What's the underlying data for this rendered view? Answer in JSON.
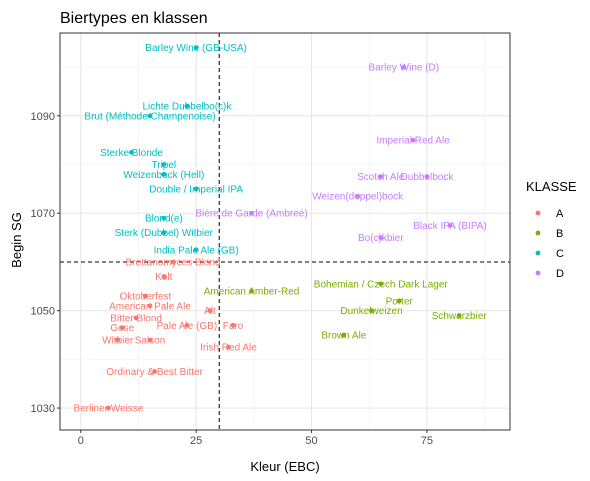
{
  "chart_data": {
    "type": "scatter",
    "title": "Biertypes en klassen",
    "xlabel": "Kleur (EBC)",
    "ylabel": "Begin SG",
    "xlim": [
      -4.5,
      93
    ],
    "ylim": [
      1025.5,
      1107
    ],
    "x_ticks": [
      0,
      25,
      50,
      75
    ],
    "y_ticks": [
      1030,
      1050,
      1070,
      1090
    ],
    "minor_x": [
      12.5,
      37.5,
      62.5,
      87.5
    ],
    "minor_y": [
      1040,
      1060,
      1080,
      1100
    ],
    "grid": true,
    "vlines": [
      30
    ],
    "hlines": [
      1060
    ],
    "legend": {
      "title": "KLASSE",
      "position": "right",
      "entries": [
        {
          "key": "A",
          "label": "A",
          "color": "#F8766D"
        },
        {
          "key": "B",
          "label": "B",
          "color": "#7CAE00"
        },
        {
          "key": "C",
          "label": "C",
          "color": "#00BFC4"
        },
        {
          "key": "D",
          "label": "D",
          "color": "#C77CFF"
        }
      ]
    },
    "points": [
      {
        "label": "Berliner Weisse",
        "x": 6,
        "y": 1030,
        "klasse": "A"
      },
      {
        "label": "Ordinary & Best Bitter",
        "x": 16,
        "y": 1037.5,
        "klasse": "A"
      },
      {
        "label": "Irish Red Ale",
        "x": 32,
        "y": 1042.5,
        "klasse": "A"
      },
      {
        "label": "Faro",
        "x": 33,
        "y": 1047,
        "klasse": "A"
      },
      {
        "label": "Pale Ale (GB)",
        "x": 23,
        "y": 1047,
        "klasse": "A"
      },
      {
        "label": "Saison",
        "x": 15,
        "y": 1044,
        "klasse": "A"
      },
      {
        "label": "Witbier",
        "x": 8,
        "y": 1044,
        "klasse": "A"
      },
      {
        "label": "Gose",
        "x": 9,
        "y": 1046.5,
        "klasse": "A"
      },
      {
        "label": "Bitter Blond",
        "x": 12,
        "y": 1048.5,
        "klasse": "A"
      },
      {
        "label": "American Pale Ale",
        "x": 15,
        "y": 1051,
        "klasse": "A"
      },
      {
        "label": "Oktoberfest",
        "x": 14,
        "y": 1053,
        "klasse": "A"
      },
      {
        "label": "Alt",
        "x": 28,
        "y": 1050,
        "klasse": "A"
      },
      {
        "label": "Kolt",
        "x": 18,
        "y": 1057,
        "klasse": "A"
      },
      {
        "label": "Brettanomyces Blond",
        "x": 20,
        "y": 1060,
        "klasse": "A"
      },
      {
        "label": "Brown Ale",
        "x": 57,
        "y": 1045,
        "klasse": "B"
      },
      {
        "label": "Dunkelweizen",
        "x": 63,
        "y": 1050,
        "klasse": "B"
      },
      {
        "label": "Schwarzbier",
        "x": 82,
        "y": 1049,
        "klasse": "B"
      },
      {
        "label": "Porter",
        "x": 69,
        "y": 1052,
        "klasse": "B"
      },
      {
        "label": "Bohemian / Czech Dark Lager",
        "x": 65,
        "y": 1055.5,
        "klasse": "B"
      },
      {
        "label": "American Amber-Red",
        "x": 37,
        "y": 1054,
        "klasse": "B"
      },
      {
        "label": "India Pale Ale (GB)",
        "x": 25,
        "y": 1062.5,
        "klasse": "C"
      },
      {
        "label": "Sterk (Dubbel) Witbier",
        "x": 18,
        "y": 1066,
        "klasse": "C"
      },
      {
        "label": "Blond(e)",
        "x": 18,
        "y": 1069,
        "klasse": "C"
      },
      {
        "label": "Double / Imperial IPA",
        "x": 25,
        "y": 1075,
        "klasse": "C"
      },
      {
        "label": "Weizenbock (Hell)",
        "x": 18,
        "y": 1078,
        "klasse": "C"
      },
      {
        "label": "Tripel",
        "x": 18,
        "y": 1080,
        "klasse": "C"
      },
      {
        "label": "Sterke Blonde",
        "x": 11,
        "y": 1082.5,
        "klasse": "C"
      },
      {
        "label": "Brut (Méthode Champenoise)",
        "x": 15,
        "y": 1090,
        "klasse": "C"
      },
      {
        "label": "Lichte Dubbelbo(c)k",
        "x": 23,
        "y": 1092,
        "klasse": "C"
      },
      {
        "label": "Barley Wine (GB-USA)",
        "x": 25,
        "y": 1104,
        "klasse": "C"
      },
      {
        "label": "Barley Wine (D)",
        "x": 70,
        "y": 1100,
        "klasse": "D"
      },
      {
        "label": "Imperial Red Ale",
        "x": 72,
        "y": 1085,
        "klasse": "D"
      },
      {
        "label": "Scotch Ale",
        "x": 65,
        "y": 1077.5,
        "klasse": "D"
      },
      {
        "label": "Dubbelbock",
        "x": 75,
        "y": 1077.5,
        "klasse": "D"
      },
      {
        "label": "Weizen(doppel)bock",
        "x": 60,
        "y": 1073.5,
        "klasse": "D"
      },
      {
        "label": "Bière de Garde (Ambreé)",
        "x": 37,
        "y": 1070,
        "klasse": "D"
      },
      {
        "label": "Black IPA (BIPA)",
        "x": 80,
        "y": 1067.5,
        "klasse": "D"
      },
      {
        "label": "Bo(c)kbier",
        "x": 65,
        "y": 1065,
        "klasse": "D"
      }
    ]
  }
}
